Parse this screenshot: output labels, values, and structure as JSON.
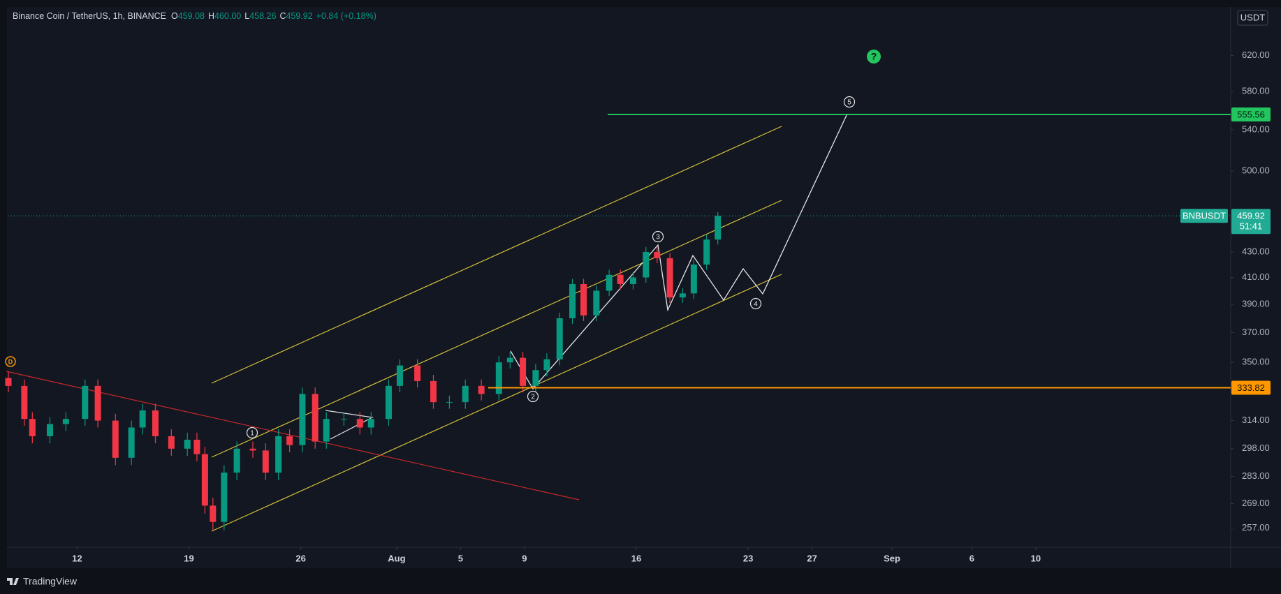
{
  "header": {
    "symbol": "Binance Coin / TetherUS, 1h, BINANCE",
    "ohlc": [
      {
        "key": "O",
        "value": "459.08"
      },
      {
        "key": "H",
        "value": "460.00"
      },
      {
        "key": "L",
        "value": "458.26"
      },
      {
        "key": "C",
        "value": "459.92"
      }
    ],
    "change": "+0.84 (+0.18%)"
  },
  "chart_data": {
    "type": "candlestick",
    "x": [
      7.7,
      8.7,
      9.2,
      10.3,
      11.3,
      12.5,
      13.3,
      14.4,
      15.4,
      16.1,
      16.9,
      17.9,
      18.9,
      19.5,
      20,
      20.5,
      21.2,
      22,
      23,
      23.8,
      24.6,
      25.3,
      26.1,
      26.9,
      27.6,
      28.7,
      29.7,
      30.4,
      31.5,
      32.2,
      33.3,
      34.3,
      35.3,
      36.3,
      37.3,
      38.4,
      39.1,
      39.9,
      40.7,
      41.4,
      42.2,
      43,
      43.7,
      44.5,
      45.3,
      46,
      46.8,
      47.6,
      48.3,
      49.1,
      49.9,
      50.6,
      51.4,
      52.1
    ],
    "open": [
      340,
      335,
      315,
      305,
      312,
      315,
      335,
      314,
      293,
      310,
      320,
      305,
      298,
      303,
      295,
      268,
      260,
      285,
      298,
      297,
      285,
      305,
      300,
      330,
      302,
      315,
      315,
      310,
      315,
      335,
      348,
      338,
      325,
      325,
      335,
      330,
      350,
      353,
      335,
      345,
      352,
      380,
      405,
      382,
      400,
      412,
      405,
      410,
      430,
      425,
      395,
      398,
      420,
      440
    ],
    "high": [
      344,
      339,
      319,
      316,
      319,
      339,
      339,
      318,
      314,
      324,
      324,
      309,
      307,
      307,
      299,
      272,
      289,
      302,
      302,
      301,
      309,
      309,
      334,
      334,
      319,
      319,
      319,
      319,
      339,
      352,
      352,
      342,
      329,
      339,
      339,
      354,
      357,
      357,
      349,
      356,
      384,
      409,
      409,
      404,
      416,
      416,
      414,
      434,
      434,
      429,
      402,
      424,
      444,
      463
    ],
    "low": [
      331,
      311,
      301,
      301,
      308,
      311,
      310,
      289,
      289,
      306,
      301,
      294,
      294,
      291,
      264,
      256,
      256,
      281,
      293,
      281,
      281,
      296,
      296,
      298,
      298,
      311,
      306,
      306,
      311,
      331,
      334,
      321,
      321,
      321,
      326,
      326,
      346,
      331,
      331,
      341,
      348,
      376,
      378,
      378,
      396,
      401,
      401,
      406,
      421,
      391,
      391,
      394,
      416,
      436
    ],
    "close": [
      335,
      315,
      305,
      312,
      315,
      335,
      314,
      293,
      310,
      320,
      305,
      298,
      303,
      295,
      268,
      260,
      285,
      298,
      297,
      285,
      305,
      300,
      330,
      302,
      315,
      315,
      310,
      315,
      335,
      348,
      338,
      325,
      325,
      335,
      330,
      350,
      353,
      335,
      345,
      352,
      380,
      405,
      382,
      400,
      412,
      405,
      410,
      430,
      425,
      395,
      398,
      420,
      440,
      459.92
    ],
    "up_color": "#089981",
    "down_color": "#f23645",
    "log_scale": true,
    "ylim": [
      248,
      677
    ],
    "yticks": [
      {
        "value": 257,
        "label": "257.00"
      },
      {
        "value": 269,
        "label": "269.00"
      },
      {
        "value": 283,
        "label": "283.00"
      },
      {
        "value": 298,
        "label": "298.00"
      },
      {
        "value": 314,
        "label": "314.00"
      },
      {
        "value": 350,
        "label": "350.00"
      },
      {
        "value": 370,
        "label": "370.00"
      },
      {
        "value": 390,
        "label": "390.00"
      },
      {
        "value": 410,
        "label": "410.00"
      },
      {
        "value": 430,
        "label": "430.00"
      },
      {
        "value": 500,
        "label": "500.00"
      },
      {
        "value": 540,
        "label": "540.00"
      },
      {
        "value": 580,
        "label": "580.00"
      },
      {
        "value": 620,
        "label": "620.00"
      }
    ],
    "xlim": [
      7.7,
      84.2
    ],
    "xticks": [
      12,
      19,
      26,
      {
        "value": 32,
        "label": "Aug"
      },
      {
        "value": 36,
        "label": "5"
      },
      {
        "value": 40,
        "label": "9"
      },
      {
        "value": 47,
        "label": "16"
      },
      {
        "value": 54,
        "label": "23"
      },
      {
        "value": 58,
        "label": "27"
      },
      {
        "value": 63,
        "label": "Sep"
      },
      {
        "value": 68,
        "label": "6"
      },
      {
        "value": 72,
        "label": "10"
      }
    ],
    "y_unit": "USDT",
    "price_lines": [
      {
        "value": 555.56,
        "color": "#22c55e"
      },
      {
        "value": 333.82,
        "color": "#ff9800"
      }
    ],
    "last_price": {
      "name": "BNBUSDT",
      "value": 459.92,
      "countdown": "51:41",
      "color": "#22ab94"
    },
    "wave_labels": [
      "1",
      "2",
      "3",
      "4",
      "5"
    ],
    "markers": [
      "D",
      "?"
    ]
  },
  "footer": {
    "brand": "TradingView"
  }
}
